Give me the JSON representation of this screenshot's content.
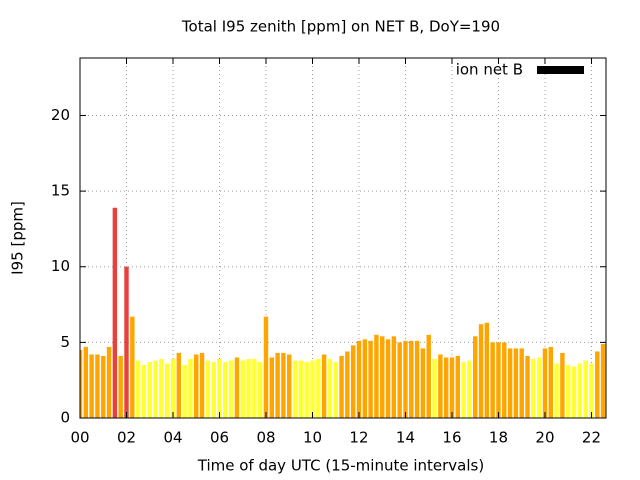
{
  "chart_data": {
    "type": "bar",
    "title": "Total I95 zenith [ppm] on NET B, DoY=190",
    "x_label": "Time of day UTC (15-minute intervals)",
    "y_label": "I95 [ppm]",
    "series": [
      {
        "name": "ion net B",
        "legend_color": "#000000",
        "x": [
          0,
          0.25,
          0.5,
          0.75,
          1,
          1.25,
          1.5,
          1.75,
          2,
          2.25,
          2.5,
          2.75,
          3,
          3.25,
          3.5,
          3.75,
          4,
          4.25,
          4.5,
          4.75,
          5,
          5.25,
          5.5,
          5.75,
          6,
          6.25,
          6.5,
          6.75,
          7,
          7.25,
          7.5,
          7.75,
          8,
          8.25,
          8.5,
          8.75,
          9,
          9.25,
          9.5,
          9.75,
          10,
          10.25,
          10.5,
          10.75,
          11,
          11.25,
          11.5,
          11.75,
          12,
          12.25,
          12.5,
          12.75,
          13,
          13.25,
          13.5,
          13.75,
          14,
          14.25,
          14.5,
          14.75,
          15,
          15.25,
          15.5,
          15.75,
          16,
          16.25,
          16.5,
          16.75,
          17,
          17.25,
          17.5,
          17.75,
          18,
          18.25,
          18.5,
          18.75,
          19,
          19.25,
          19.5,
          19.75,
          20,
          20.25,
          20.5,
          20.75,
          21,
          21.25,
          21.5,
          21.75,
          22,
          22.25,
          22.5
        ],
        "values": [
          4.5,
          4.7,
          4.2,
          4.2,
          4.1,
          4.7,
          13.9,
          4.1,
          10.0,
          6.7,
          3.8,
          3.5,
          3.7,
          3.8,
          3.9,
          3.6,
          3.9,
          4.3,
          3.5,
          3.9,
          4.2,
          4.3,
          3.8,
          3.7,
          3.9,
          3.7,
          3.8,
          4.0,
          3.8,
          3.9,
          3.9,
          3.7,
          6.7,
          4.0,
          4.3,
          4.3,
          4.2,
          3.8,
          3.8,
          3.7,
          3.8,
          3.9,
          4.2,
          3.9,
          3.7,
          4.1,
          4.4,
          4.8,
          5.1,
          5.2,
          5.1,
          5.5,
          5.4,
          5.2,
          5.4,
          5.0,
          5.1,
          5.1,
          5.1,
          4.6,
          5.5,
          3.9,
          4.2,
          4.0,
          4.0,
          4.1,
          3.7,
          3.8,
          5.4,
          6.2,
          6.3,
          5.0,
          5.0,
          5.0,
          4.6,
          4.6,
          4.6,
          4.1,
          3.9,
          4.0,
          4.6,
          4.7,
          3.6,
          4.3,
          3.5,
          3.4,
          3.6,
          3.8,
          3.6,
          4.4,
          4.9
        ],
        "colors": [
          "#ffa500",
          "#ffa500",
          "#ffa500",
          "#ffa500",
          "#ffa500",
          "#ffa500",
          "#e8413c",
          "#ffa500",
          "#e8413c",
          "#ffa500",
          "#ffff33",
          "#ffff33",
          "#ffff33",
          "#ffff33",
          "#ffff33",
          "#ffff33",
          "#ffff33",
          "#ffa500",
          "#ffff33",
          "#ffff33",
          "#ffa500",
          "#ffa500",
          "#ffff33",
          "#ffff33",
          "#ffff33",
          "#ffff33",
          "#ffff33",
          "#ffa500",
          "#ffff33",
          "#ffff33",
          "#ffff33",
          "#ffff33",
          "#ffa500",
          "#ffa500",
          "#ffa500",
          "#ffa500",
          "#ffa500",
          "#ffff33",
          "#ffff33",
          "#ffff33",
          "#ffff33",
          "#ffff33",
          "#ffa500",
          "#ffff33",
          "#ffff33",
          "#ffa500",
          "#ffa500",
          "#ffa500",
          "#ffa500",
          "#ffa500",
          "#ffa500",
          "#ffa500",
          "#ffa500",
          "#ffa500",
          "#ffa500",
          "#ffa500",
          "#ffa500",
          "#ffa500",
          "#ffa500",
          "#ffa500",
          "#ffa500",
          "#ffff33",
          "#ffa500",
          "#ffa500",
          "#ffa500",
          "#ffa500",
          "#ffff33",
          "#ffff33",
          "#ffa500",
          "#ffa500",
          "#ffa500",
          "#ffa500",
          "#ffa500",
          "#ffa500",
          "#ffa500",
          "#ffa500",
          "#ffa500",
          "#ffa500",
          "#ffff33",
          "#ffff33",
          "#ffa500",
          "#ffa500",
          "#ffff33",
          "#ffa500",
          "#ffff33",
          "#ffff33",
          "#ffff33",
          "#ffff33",
          "#ffff33",
          "#ffa500",
          "#ffa500"
        ]
      }
    ],
    "xlim": [
      0,
      22.625
    ],
    "xticks": [
      {
        "value": 0,
        "label": "00"
      },
      {
        "value": 2,
        "label": "02"
      },
      {
        "value": 4,
        "label": "04"
      },
      {
        "value": 6,
        "label": "06"
      },
      {
        "value": 8,
        "label": "08"
      },
      {
        "value": 10,
        "label": "10"
      },
      {
        "value": 12,
        "label": "12"
      },
      {
        "value": 14,
        "label": "14"
      },
      {
        "value": 16,
        "label": "16"
      },
      {
        "value": 18,
        "label": "18"
      },
      {
        "value": 20,
        "label": "20"
      },
      {
        "value": 22,
        "label": "22"
      }
    ],
    "ylim": [
      0,
      23.8
    ],
    "yticks": [
      0,
      5,
      10,
      15,
      20
    ],
    "bar_width": 0.19,
    "grid": true,
    "legend": "top-right"
  }
}
